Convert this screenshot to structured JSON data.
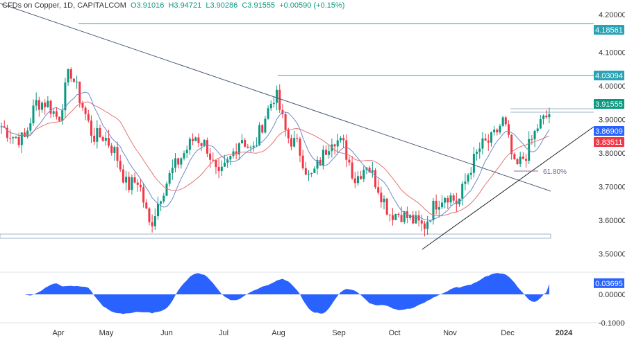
{
  "header": {
    "symbol": "CFDs on Copper, 1D, CAPITALCOM",
    "open": "O3.91016",
    "high": "H3.94721",
    "low": "L3.90286",
    "close": "C3.91555",
    "change": "+0.00590 (+0.15%)"
  },
  "colors": {
    "up": "#089981",
    "down": "#f23645",
    "fast_ma": "#2962ff",
    "slow_ma": "#e57373",
    "level": "#26a3b5",
    "osc": "#2962ff"
  },
  "chart_data": {
    "type": "candlestick",
    "title": "CFDs on Copper, 1D, CAPITALCOM",
    "x_ticks": [
      "Apr",
      "May",
      "Jun",
      "Jul",
      "Aug",
      "Sep",
      "Oct",
      "Nov",
      "Dec",
      "2024"
    ],
    "y_ticks": [
      "4.20000",
      "4.10000",
      "4.00000",
      "3.90000",
      "3.80000",
      "3.70000",
      "3.60000",
      "3.50000"
    ],
    "ylim": [
      3.45,
      4.22
    ],
    "price_path_weekly_close": [
      3.88,
      3.85,
      3.84,
      3.95,
      3.95,
      3.9,
      4.05,
      3.95,
      3.85,
      3.85,
      3.8,
      3.7,
      3.72,
      3.58,
      3.68,
      3.75,
      3.8,
      3.85,
      3.82,
      3.72,
      3.78,
      3.85,
      3.8,
      3.9,
      3.98,
      3.85,
      3.82,
      3.72,
      3.78,
      3.85,
      3.82,
      3.72,
      3.77,
      3.7,
      3.62,
      3.62,
      3.6,
      3.58,
      3.65,
      3.68,
      3.65,
      3.75,
      3.82,
      3.84,
      3.9,
      3.75,
      3.8,
      3.88,
      3.91555
    ],
    "price_labels": [
      {
        "text": "4.18561",
        "value": 4.18561,
        "color": "#26a3b5"
      },
      {
        "text": "4.03094",
        "value": 4.03094,
        "color": "#26a3b5"
      },
      {
        "text": "3.91555",
        "value": 3.91555,
        "color": "#089981"
      },
      {
        "text": "3.86909",
        "value": 3.86909,
        "color": "#2962ff"
      },
      {
        "text": "3.83511",
        "value": 3.83511,
        "color": "#f23645"
      }
    ],
    "annotation": "61.80%",
    "oscillator": {
      "y_ticks": [
        "0.00000",
        "-0.10000"
      ],
      "last": "0.03695",
      "ylim": [
        -0.11,
        0.06
      ]
    }
  }
}
